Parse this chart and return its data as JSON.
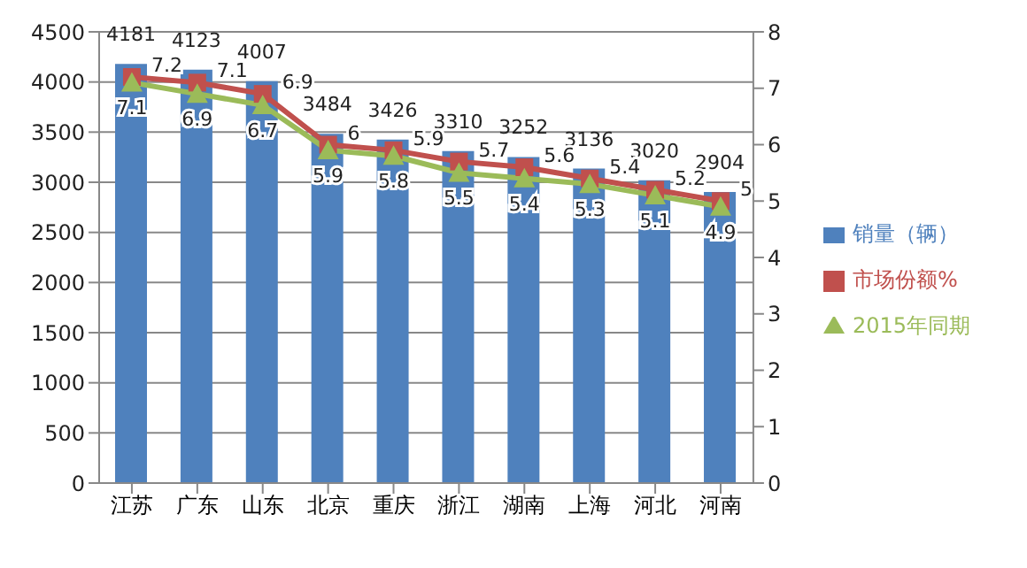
{
  "chart_data": {
    "type": "bar",
    "categories": [
      "江苏",
      "广东",
      "山东",
      "北京",
      "重庆",
      "浙江",
      "湖南",
      "上海",
      "河北",
      "河南"
    ],
    "series": [
      {
        "name": "销量（辆）",
        "color": "#4f81bd",
        "values": [
          4181,
          4123,
          4007,
          3484,
          3426,
          3310,
          3252,
          3136,
          3020,
          2904
        ]
      },
      {
        "name": "市场份额%",
        "type": "line",
        "axis": "y2",
        "marker": "square",
        "color": "#c0504d",
        "values": [
          7.2,
          7.1,
          6.9,
          6,
          5.9,
          5.7,
          5.6,
          5.4,
          5.2,
          5
        ]
      },
      {
        "name": "2015年同期",
        "type": "line",
        "axis": "y2",
        "marker": "triangle",
        "color": "#9bbb59",
        "values": [
          7.1,
          6.9,
          6.7,
          5.9,
          5.8,
          5.5,
          5.4,
          5.3,
          5.1,
          4.9
        ]
      }
    ],
    "ylim": [
      0,
      4500
    ],
    "yticks": [
      0,
      500,
      1000,
      1500,
      2000,
      2500,
      3000,
      3500,
      4000,
      4500
    ],
    "y2lim": [
      0,
      8
    ],
    "y2ticks": [
      0,
      1,
      2,
      3,
      4,
      5,
      6,
      7,
      8
    ],
    "grid": "y",
    "legend": "right",
    "data_labels": true
  }
}
